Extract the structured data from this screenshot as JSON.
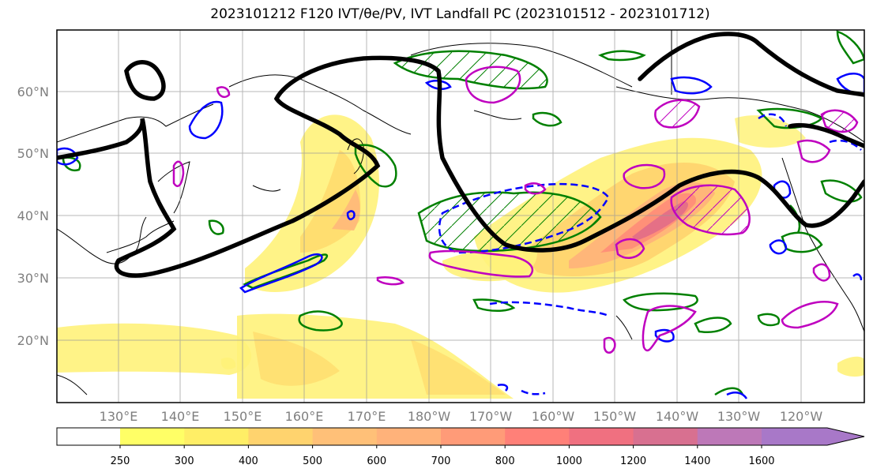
{
  "title": "2023101212 F120 IVT/θe/PV, IVT Landfall PC (2023101512 - 2023101712)",
  "map": {
    "lat_labels": [
      "60°N",
      "50°N",
      "40°N",
      "30°N",
      "20°N"
    ],
    "lon_labels": [
      "130°E",
      "140°E",
      "150°E",
      "160°E",
      "170°E",
      "180°W",
      "170°W",
      "160°W",
      "150°W",
      "140°W",
      "130°W",
      "120°W"
    ],
    "colors": {
      "theta_e": "#000000",
      "pv_positive": "#008000",
      "pv_negative": "#0000ff",
      "landfall_pc": "#bf00bf"
    }
  },
  "colorbar": {
    "ticks": [
      "250",
      "300",
      "400",
      "500",
      "600",
      "700",
      "800",
      "1000",
      "1200",
      "1400",
      "1600"
    ],
    "colors": [
      "#ffff66",
      "#ffee66",
      "#ffd36e",
      "#ffc078",
      "#ffb27a",
      "#ff9b78",
      "#ff8078",
      "#f07080",
      "#d87090",
      "#bd78b8",
      "#a878c8"
    ]
  }
}
